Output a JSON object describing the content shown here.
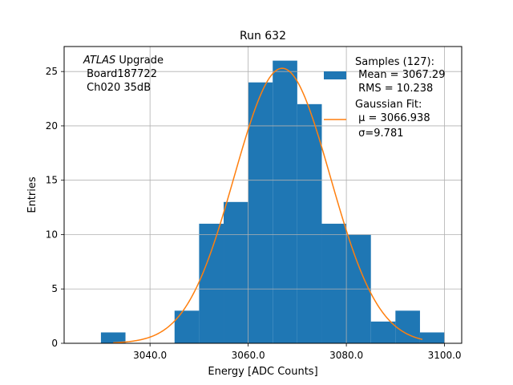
{
  "chart_data": {
    "type": "bar",
    "title": "Run 632",
    "xlabel": "Energy [ADC Counts]",
    "ylabel": "Entries",
    "xlim": [
      3022.5,
      3103.5
    ],
    "ylim": [
      0,
      27.3
    ],
    "grid": true,
    "x_ticks": [
      {
        "value": 3040,
        "label": "3040.0"
      },
      {
        "value": 3060,
        "label": "3060.0"
      },
      {
        "value": 3080,
        "label": "3080.0"
      },
      {
        "value": 3100,
        "label": "3100.0"
      }
    ],
    "y_ticks": [
      {
        "value": 0,
        "label": "0"
      },
      {
        "value": 5,
        "label": "5"
      },
      {
        "value": 10,
        "label": "10"
      },
      {
        "value": 15,
        "label": "15"
      },
      {
        "value": 20,
        "label": "20"
      },
      {
        "value": 25,
        "label": "25"
      }
    ],
    "histogram": {
      "name": "Samples",
      "color": "#1f77b4",
      "bin_edges": [
        3030,
        3035,
        3040,
        3045,
        3050,
        3055,
        3060,
        3065,
        3070,
        3075,
        3080,
        3085,
        3090,
        3095,
        3100
      ],
      "counts": [
        1,
        0,
        0,
        3,
        11,
        13,
        24,
        26,
        22,
        11,
        10,
        2,
        3,
        1
      ]
    },
    "fit": {
      "name": "Gaussian Fit",
      "color": "#ff7f0e",
      "mu": 3066.938,
      "sigma": 9.781,
      "amplitude": 25.3,
      "x_range": [
        3032.5,
        3095.5
      ]
    },
    "annotation": {
      "line1_italic": "ATLAS",
      "line1_rest": " Upgrade",
      "line2": " Board187722",
      "line3": " Ch020 35dB"
    },
    "legend": {
      "position": "top-right",
      "hist_title": "Samples (127):",
      "hist_mean": " Mean = 3067.29",
      "hist_rms": " RMS = 10.238",
      "fit_title": "Gaussian Fit:",
      "fit_mu": " μ = 3066.938",
      "fit_sigma": " σ=9.781"
    }
  }
}
